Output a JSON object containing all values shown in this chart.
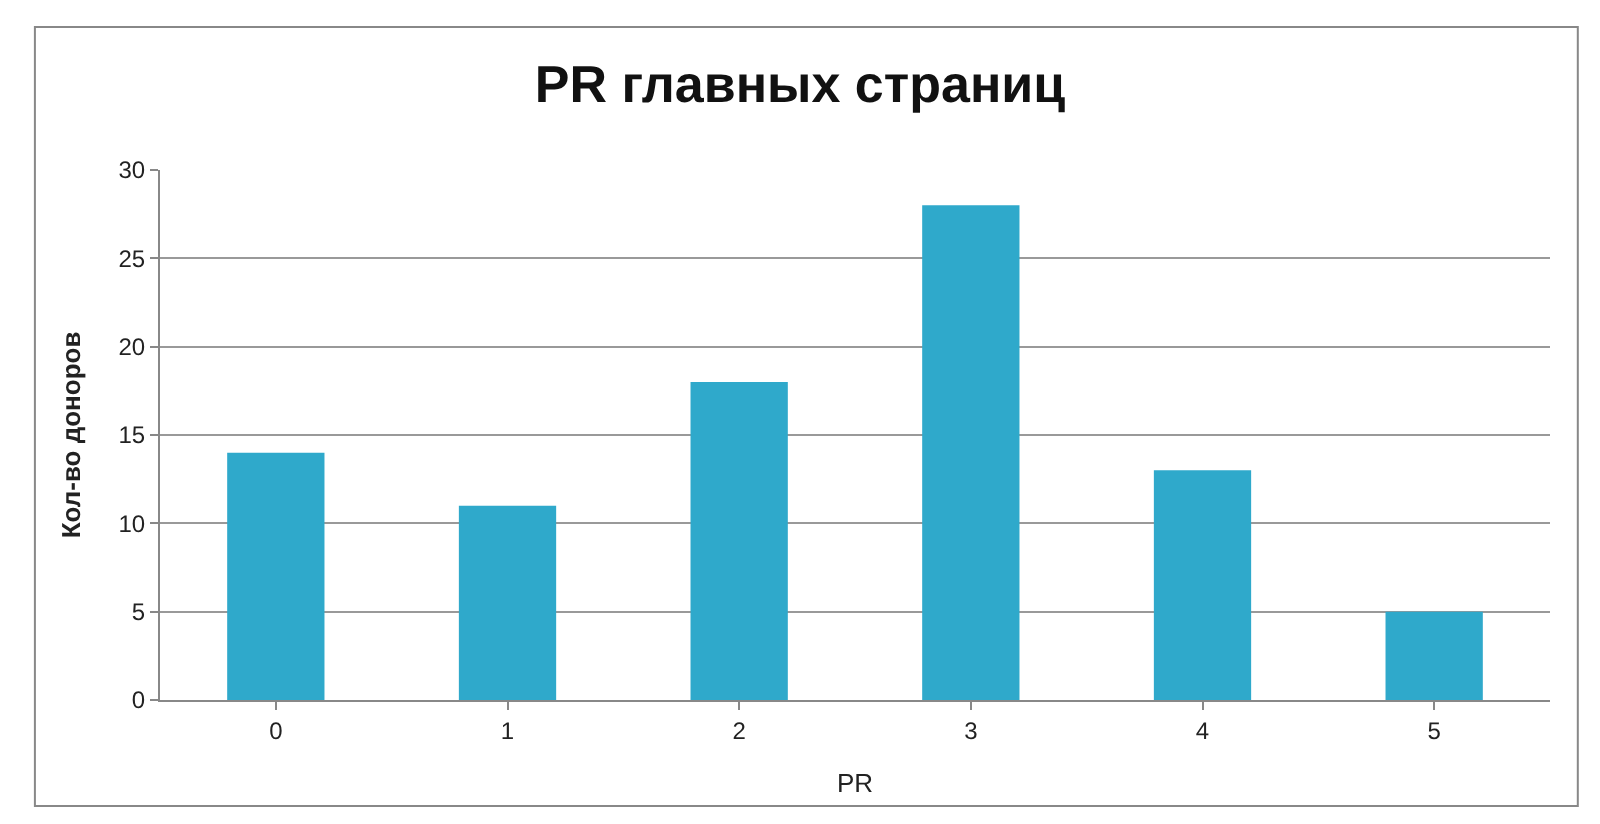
{
  "chart_data": {
    "type": "bar",
    "title": "PR главных страниц",
    "xlabel": "PR",
    "ylabel": "Кол-во доноров",
    "categories": [
      "0",
      "1",
      "2",
      "3",
      "4",
      "5"
    ],
    "values": [
      14,
      11,
      18,
      28,
      13,
      5
    ],
    "color": "#2fa9cb",
    "ylim": [
      0,
      30
    ],
    "yticks": [
      0,
      5,
      10,
      15,
      20,
      25,
      30
    ],
    "grid": "y",
    "legend": false
  }
}
